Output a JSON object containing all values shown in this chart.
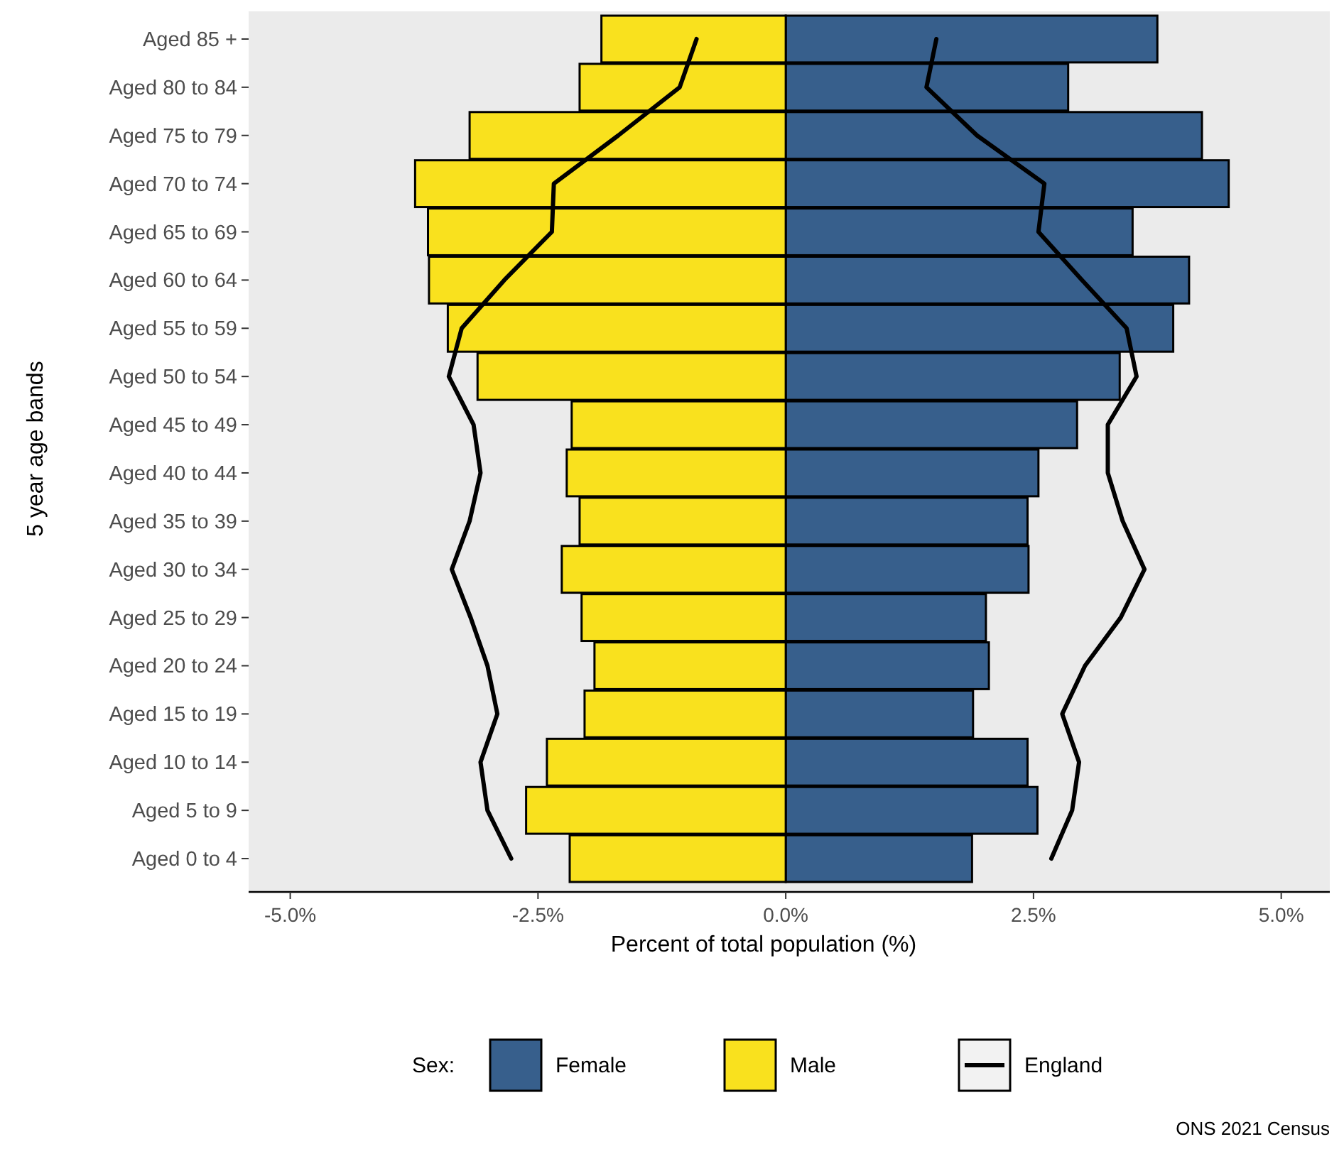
{
  "chart_data": {
    "type": "bar",
    "orientation": "horizontal",
    "stacked": true,
    "xlabel": "Percent of total population (%)",
    "ylabel": "5 year age bands",
    "legend_title": "Sex:",
    "legend": "bottom",
    "annotations": [
      "ONS 2021 Census"
    ],
    "categories": [
      "Aged 85 +",
      "Aged 80 to 84",
      "Aged 75 to 79",
      "Aged 70 to 74",
      "Aged 65 to 69",
      "Aged 60 to 64",
      "Aged 55 to 59",
      "Aged 50 to 54",
      "Aged 45 to 49",
      "Aged 40 to 44",
      "Aged 35 to 39",
      "Aged 30 to 34",
      "Aged 25 to 29",
      "Aged 20 to 24",
      "Aged 15 to 19",
      "Aged 10 to 14",
      "Aged 5 to 9",
      "Aged 0 to 4"
    ],
    "xlim": [
      -5.42,
      5.49
    ],
    "xticks": [
      {
        "value": -5,
        "label": "-5.0%"
      },
      {
        "value": -2.5,
        "label": "-2.5%"
      },
      {
        "value": 0,
        "label": "0.0%"
      },
      {
        "value": 2.5,
        "label": "2.5%"
      },
      {
        "value": 5,
        "label": "5.0%"
      }
    ],
    "series": [
      {
        "name": "Female",
        "color": "#375f8c",
        "values": [
          3.75,
          2.85,
          4.2,
          4.47,
          3.5,
          4.07,
          3.91,
          3.37,
          2.94,
          2.55,
          2.44,
          2.45,
          2.02,
          2.05,
          1.89,
          2.44,
          2.54,
          1.88
        ]
      },
      {
        "name": "Male",
        "color": "#f9e11e",
        "values": [
          -1.86,
          -2.08,
          -3.19,
          -3.74,
          -3.61,
          -3.6,
          -3.41,
          -3.11,
          -2.16,
          -2.21,
          -2.08,
          -2.26,
          -2.06,
          -1.93,
          -2.03,
          -2.41,
          -2.62,
          -2.18
        ]
      },
      {
        "name": "England",
        "type": "line",
        "color": "#000000",
        "values": [
          1.52,
          1.42,
          1.93,
          2.61,
          2.55,
          2.99,
          3.44,
          3.54,
          3.25,
          3.25,
          3.4,
          3.62,
          3.38,
          3.02,
          2.79,
          2.96,
          2.89,
          2.68
        ]
      },
      {
        "type": "line",
        "color": "#000000",
        "values": [
          -0.9,
          -1.07,
          -1.69,
          -2.34,
          -2.36,
          -2.84,
          -3.27,
          -3.4,
          -3.15,
          -3.08,
          -3.19,
          -3.37,
          -3.18,
          -3.01,
          -2.91,
          -3.08,
          -3.01,
          -2.77
        ]
      }
    ]
  }
}
